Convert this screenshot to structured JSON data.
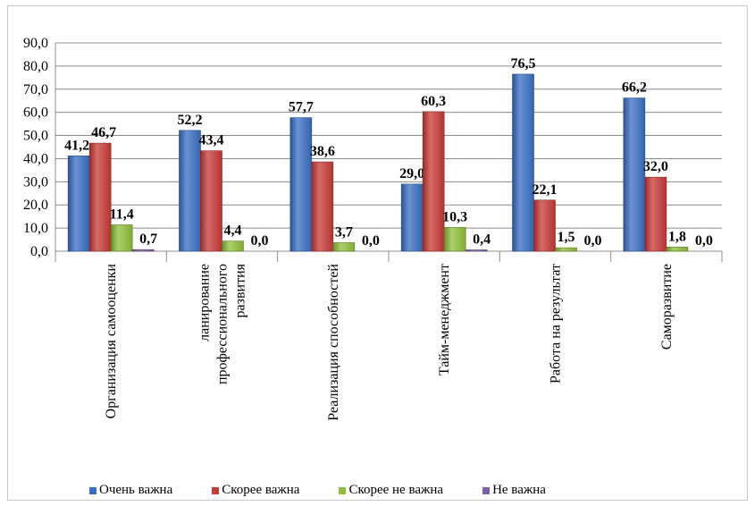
{
  "chart_data": {
    "type": "bar",
    "categories": [
      "Организация самооценки",
      "ланирование профессионального развития",
      "Реализация способностей",
      "Тайм-менеджмент",
      "Работа на результат",
      "Саморазвитие"
    ],
    "category_lines": [
      [
        "Организация самооценки"
      ],
      [
        "ланирование",
        "профессионального",
        "развития"
      ],
      [
        "Реализация способностей"
      ],
      [
        "Тайм-менеджмент"
      ],
      [
        "Работа на результат"
      ],
      [
        "Саморазвитие"
      ]
    ],
    "series": [
      {
        "name": "Очень важна",
        "color": "#3a6fc4",
        "values": [
          41.2,
          52.2,
          57.7,
          29.0,
          76.5,
          66.2
        ],
        "labels": [
          "41,2",
          "52,2",
          "57,7",
          "29,0",
          "76,5",
          "66,2"
        ]
      },
      {
        "name": "Скорее важна",
        "color": "#c83a36",
        "values": [
          46.7,
          43.4,
          38.6,
          60.3,
          22.1,
          32.0
        ],
        "labels": [
          "46,7",
          "43,4",
          "38,6",
          "60,3",
          "22,1",
          "32,0"
        ]
      },
      {
        "name": "Скорее не важна",
        "color": "#8fbf3a",
        "values": [
          11.4,
          4.4,
          3.7,
          10.3,
          1.5,
          1.8
        ],
        "labels": [
          "11,4",
          "4,4",
          "3,7",
          "10,3",
          "1,5",
          "1,8"
        ]
      },
      {
        "name": "Не важна",
        "color": "#7f5fa8",
        "values": [
          0.7,
          0.0,
          0.0,
          0.4,
          0.0,
          0.0
        ],
        "labels": [
          "0,7",
          "0,0",
          "0,0",
          "0,4",
          "0,0",
          "0,0"
        ]
      }
    ],
    "ylim": [
      0,
      90
    ],
    "yticks": [
      "0,0",
      "10,0",
      "20,0",
      "30,0",
      "40,0",
      "50,0",
      "60,0",
      "70,0",
      "80,0",
      "90,0"
    ],
    "grid": true,
    "legend_position": "bottom"
  }
}
